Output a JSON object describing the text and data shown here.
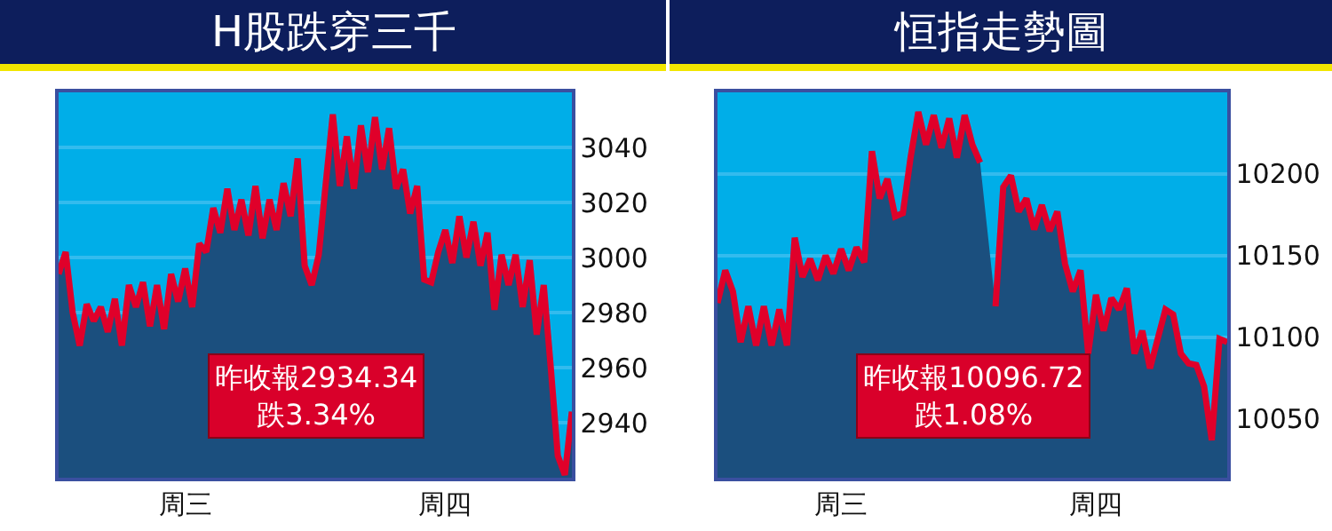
{
  "chart_data": [
    {
      "type": "area",
      "title": "H股跌穿三千",
      "categories": [
        null,
        null,
        null,
        null,
        null,
        null,
        null,
        null,
        null,
        null,
        null,
        null,
        null,
        null,
        null,
        null,
        null,
        null,
        "周三",
        null,
        null,
        null,
        null,
        null,
        null,
        null,
        null,
        null,
        null,
        null,
        null,
        null,
        null,
        null,
        null,
        null,
        null,
        null,
        null,
        null,
        null,
        null,
        null,
        null,
        null,
        null,
        null,
        null,
        null,
        null,
        null,
        null,
        null,
        null,
        null,
        "周四",
        null,
        null,
        null,
        null,
        null,
        null,
        null,
        null,
        null,
        null,
        null,
        null,
        null,
        null,
        null,
        null,
        null,
        null
      ],
      "ylim": [
        2920,
        3060
      ],
      "yticks": [
        2940,
        2960,
        2980,
        3000,
        3020,
        3040
      ],
      "grid": "y",
      "annotations": [
        "昨收報2934.34\n跌3.34%"
      ],
      "series": [
        {
          "color": "#1b4f7e",
          "values": [
            2994,
            3002,
            2980,
            2968,
            2983,
            2977,
            2982,
            2973,
            2985,
            2968,
            2990,
            2982,
            2991,
            2975,
            2990,
            2974,
            2994,
            2984,
            2996,
            2982,
            3005,
            3002,
            3018,
            3009,
            3025,
            3010,
            3021,
            3008,
            3026,
            3007,
            3021,
            3010,
            3027,
            3015,
            3036,
            2997,
            2990,
            3001,
            3027,
            3052,
            3026,
            3044,
            3025,
            3048,
            3031,
            3051,
            3032,
            3047,
            3025,
            3032,
            3016,
            3026,
            2992,
            2991,
            3002,
            3010,
            2998,
            3015,
            3000,
            3013,
            2997,
            3009,
            2981,
            3001,
            2990,
            3001,
            2982,
            2999,
            2972,
            2990,
            2960,
            2928,
            2921,
            2944
          ]
        },
        {
          "type": "line",
          "color": "#e0002a",
          "values": [
            2994,
            3002,
            2980,
            2968,
            2983,
            2977,
            2982,
            2973,
            2985,
            2968,
            2990,
            2982,
            2991,
            2975,
            2990,
            2974,
            2994,
            2984,
            2996,
            2982,
            3005,
            3002,
            3018,
            3009,
            3025,
            3010,
            3021,
            3008,
            3026,
            3007,
            3021,
            3010,
            3027,
            3015,
            3036,
            2997,
            2990,
            3001,
            3027,
            3052,
            3026,
            3044,
            3025,
            3048,
            3031,
            3051,
            3032,
            3047,
            3025,
            3032,
            3016,
            3026,
            2992,
            2991,
            3002,
            3010,
            2998,
            3015,
            3000,
            3013,
            2997,
            3009,
            2981,
            3001,
            2990,
            3001,
            2982,
            2999,
            2972,
            2990,
            2960,
            2928,
            2921,
            2944
          ]
        }
      ]
    },
    {
      "type": "area",
      "title": "恒指走勢圖",
      "categories": [
        null,
        null,
        null,
        null,
        null,
        null,
        null,
        null,
        null,
        null,
        null,
        null,
        null,
        null,
        null,
        null,
        "周三",
        null,
        null,
        null,
        null,
        null,
        null,
        null,
        null,
        null,
        null,
        null,
        null,
        null,
        null,
        null,
        null,
        null,
        null,
        null,
        null,
        null,
        null,
        null,
        null,
        null,
        null,
        null,
        null,
        null,
        null,
        null,
        null,
        "周四",
        null,
        null,
        null,
        null,
        null,
        null,
        null,
        null,
        null,
        null,
        null,
        null,
        null,
        null,
        null,
        null,
        null
      ],
      "ylim": [
        10014,
        10250
      ],
      "yticks": [
        10050,
        10100,
        10150,
        10200
      ],
      "grid": "y",
      "annotations": [
        "昨收報10096.72\n跌1.08%"
      ],
      "series": [
        {
          "color": "#1b4f7e",
          "values": [
            10121,
            10141,
            10128,
            10097,
            10119,
            10095,
            10119,
            10095,
            10117,
            10095,
            10161,
            10137,
            10148,
            10135,
            10150,
            10139,
            10154,
            10141,
            10155,
            10146,
            10214,
            10185,
            10197,
            10174,
            10176,
            10210,
            10238,
            10218,
            10236,
            10216,
            10234,
            10210,
            10236,
            10218,
            10207,
            null,
            10119,
            10192,
            10199,
            10177,
            10185,
            10166,
            10181,
            10165,
            10177,
            10145,
            10128,
            10141,
            10090,
            10126,
            10104,
            10124,
            10117,
            10130,
            10090,
            10104,
            10081,
            10099,
            10117,
            10114,
            10090,
            10084,
            10083,
            10070,
            10037,
            10099,
            10097
          ]
        },
        {
          "type": "line",
          "color": "#e0002a",
          "values": [
            10121,
            10141,
            10128,
            10097,
            10119,
            10095,
            10119,
            10095,
            10117,
            10095,
            10161,
            10137,
            10148,
            10135,
            10150,
            10139,
            10154,
            10141,
            10155,
            10146,
            10214,
            10185,
            10197,
            10174,
            10176,
            10210,
            10238,
            10218,
            10236,
            10216,
            10234,
            10210,
            10236,
            10218,
            10207,
            null,
            10119,
            10192,
            10199,
            10177,
            10185,
            10166,
            10181,
            10165,
            10177,
            10145,
            10128,
            10141,
            10090,
            10126,
            10104,
            10124,
            10117,
            10130,
            10090,
            10104,
            10081,
            10099,
            10117,
            10114,
            10090,
            10084,
            10083,
            10070,
            10037,
            10099,
            10097
          ]
        }
      ]
    }
  ]
}
